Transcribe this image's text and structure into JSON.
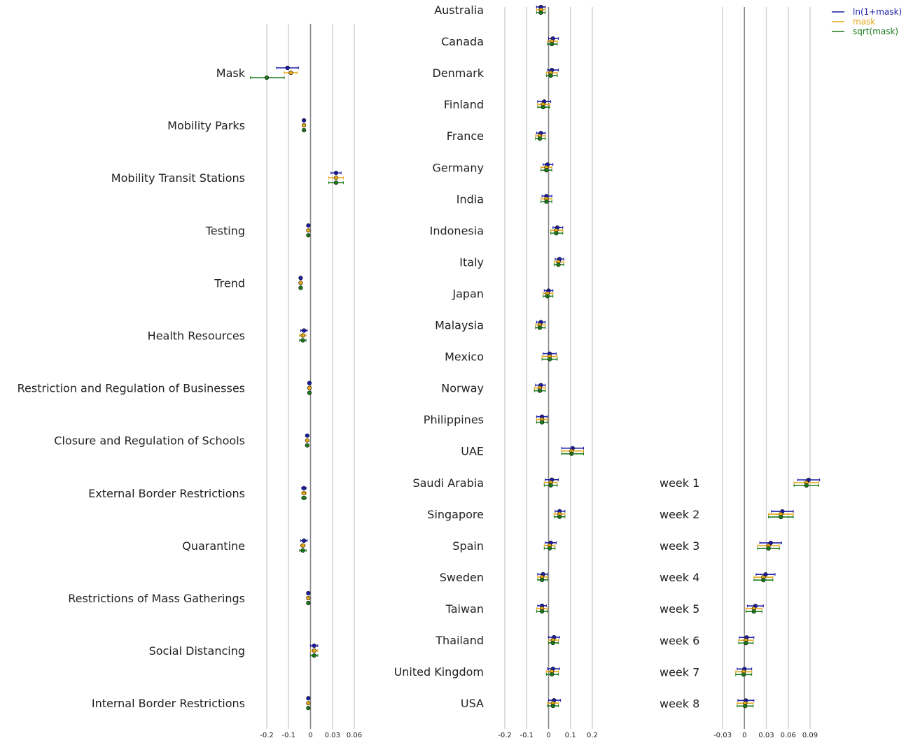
{
  "colors": {
    "series_1": "#1c1ca8",
    "series_2": "#e6a817",
    "series_3": "#1a7a1a",
    "grid": "#d0d0d0",
    "zero_line": "#888888",
    "text": "#222222"
  },
  "legend": {
    "placement": "top-right",
    "entries": [
      "ln(1+mask)",
      "mask",
      "sqrt(mask)"
    ]
  },
  "chart_data": [
    {
      "type": "scatter",
      "orientation": "horizontal-forest",
      "grid": true,
      "xlim": [
        -0.2,
        0.06
      ],
      "xticks": [
        "-0.2",
        "-0.1",
        "0",
        "0.03",
        "0.06"
      ],
      "xtick_values": [
        -0.2,
        -0.1,
        0,
        0.03,
        0.06
      ],
      "categories": [
        "Mask",
        "Mobility Parks",
        "Mobility Transit Stations",
        "Testing",
        "Trend",
        "Health Resources",
        "Restriction and Regulation of Businesses",
        "Closure and Regulation of Schools",
        "External Border Restrictions",
        "Quarantine",
        "Restrictions of Mass Gatherings",
        "Social Distancing",
        "Internal Border Restrictions"
      ],
      "series": [
        {
          "name": "ln(1+mask)",
          "values": [
            -0.105,
            -0.03,
            0.035,
            -0.01,
            -0.045,
            -0.03,
            -0.005,
            -0.015,
            -0.03,
            -0.03,
            -0.01,
            0.005,
            -0.01
          ],
          "lower": [
            -0.155,
            -0.034,
            0.028,
            -0.013,
            -0.05,
            -0.045,
            -0.008,
            -0.02,
            -0.04,
            -0.045,
            -0.015,
            0.0,
            -0.015
          ],
          "upper": [
            -0.055,
            -0.026,
            0.042,
            -0.007,
            -0.04,
            -0.015,
            -0.002,
            -0.01,
            -0.02,
            -0.015,
            -0.005,
            0.01,
            -0.005
          ]
        },
        {
          "name": "mask",
          "values": [
            -0.09,
            -0.03,
            0.035,
            -0.01,
            -0.045,
            -0.035,
            -0.005,
            -0.015,
            -0.03,
            -0.035,
            -0.01,
            0.005,
            -0.01
          ],
          "lower": [
            -0.12,
            -0.034,
            0.025,
            -0.013,
            -0.05,
            -0.05,
            -0.008,
            -0.02,
            -0.04,
            -0.045,
            -0.015,
            0.0,
            -0.015
          ],
          "upper": [
            -0.06,
            -0.026,
            0.045,
            -0.007,
            -0.04,
            -0.02,
            -0.002,
            -0.01,
            -0.02,
            -0.025,
            -0.005,
            0.01,
            -0.005
          ]
        },
        {
          "name": "sqrt(mask)",
          "values": [
            -0.2,
            -0.03,
            0.035,
            -0.01,
            -0.045,
            -0.035,
            -0.005,
            -0.015,
            -0.03,
            -0.035,
            -0.01,
            0.005,
            -0.01
          ],
          "lower": [
            -0.275,
            -0.034,
            0.025,
            -0.013,
            -0.05,
            -0.05,
            -0.008,
            -0.02,
            -0.04,
            -0.05,
            -0.015,
            0.0,
            -0.015
          ],
          "upper": [
            -0.12,
            -0.026,
            0.045,
            -0.007,
            -0.04,
            -0.02,
            -0.002,
            -0.01,
            -0.02,
            -0.02,
            -0.005,
            0.01,
            -0.005
          ]
        }
      ]
    },
    {
      "type": "scatter",
      "orientation": "horizontal-forest",
      "grid": true,
      "xlim": [
        -0.2,
        0.2
      ],
      "xticks": [
        "-0.2",
        "-0.1",
        "0",
        "0.1",
        "0.2"
      ],
      "xtick_values": [
        -0.2,
        -0.1,
        0,
        0.1,
        0.2
      ],
      "categories": [
        "Australia",
        "Canada",
        "Denmark",
        "Finland",
        "France",
        "Germany",
        "India",
        "Indonesia",
        "Italy",
        "Japan",
        "Malaysia",
        "Mexico",
        "Norway",
        "Philippines",
        "UAE",
        "Saudi Arabia",
        "Singapore",
        "Spain",
        "Sweden",
        "Taiwan",
        "Thailand",
        "United Kingdom",
        "USA"
      ],
      "series": [
        {
          "name": "ln(1+mask)",
          "values": [
            -0.035,
            0.02,
            0.015,
            -0.02,
            -0.035,
            -0.005,
            -0.01,
            0.04,
            0.05,
            0.0,
            -0.035,
            0.005,
            -0.035,
            -0.03,
            0.11,
            0.015,
            0.05,
            0.01,
            -0.025,
            -0.03,
            0.025,
            0.02,
            0.025
          ],
          "lower": [
            -0.055,
            0.0,
            -0.005,
            -0.05,
            -0.055,
            -0.025,
            -0.03,
            0.02,
            0.03,
            -0.02,
            -0.055,
            -0.025,
            -0.06,
            -0.055,
            0.06,
            -0.015,
            0.03,
            -0.015,
            -0.05,
            -0.05,
            0.0,
            -0.005,
            0.0
          ],
          "upper": [
            -0.015,
            0.045,
            0.045,
            0.01,
            -0.015,
            0.02,
            0.015,
            0.065,
            0.07,
            0.02,
            -0.015,
            0.035,
            -0.015,
            -0.005,
            0.16,
            0.045,
            0.075,
            0.035,
            -0.005,
            -0.01,
            0.05,
            0.05,
            0.055
          ]
        },
        {
          "name": "mask",
          "values": [
            -0.035,
            0.015,
            0.01,
            -0.025,
            -0.04,
            -0.01,
            -0.01,
            0.035,
            0.045,
            -0.005,
            -0.04,
            0.005,
            -0.04,
            -0.03,
            0.105,
            0.01,
            0.05,
            0.005,
            -0.03,
            -0.03,
            0.02,
            0.015,
            0.02
          ],
          "lower": [
            -0.055,
            -0.005,
            -0.01,
            -0.05,
            -0.06,
            -0.035,
            -0.035,
            0.01,
            0.025,
            -0.025,
            -0.06,
            -0.03,
            -0.065,
            -0.055,
            0.06,
            -0.02,
            0.025,
            -0.02,
            -0.05,
            -0.055,
            0.0,
            -0.01,
            -0.005
          ],
          "upper": [
            -0.015,
            0.04,
            0.04,
            0.005,
            -0.015,
            0.015,
            0.015,
            0.065,
            0.07,
            0.02,
            -0.015,
            0.04,
            -0.015,
            -0.005,
            0.16,
            0.04,
            0.075,
            0.03,
            -0.005,
            -0.005,
            0.045,
            0.045,
            0.045
          ]
        },
        {
          "name": "sqrt(mask)",
          "values": [
            -0.035,
            0.015,
            0.01,
            -0.025,
            -0.04,
            -0.01,
            -0.01,
            0.035,
            0.045,
            -0.005,
            -0.04,
            0.005,
            -0.04,
            -0.03,
            0.105,
            0.01,
            0.05,
            0.005,
            -0.03,
            -0.03,
            0.02,
            0.015,
            0.02
          ],
          "lower": [
            -0.055,
            -0.005,
            -0.01,
            -0.05,
            -0.06,
            -0.035,
            -0.035,
            0.01,
            0.025,
            -0.025,
            -0.06,
            -0.03,
            -0.065,
            -0.055,
            0.06,
            -0.02,
            0.025,
            -0.02,
            -0.05,
            -0.055,
            0.0,
            -0.01,
            -0.005
          ],
          "upper": [
            -0.015,
            0.04,
            0.04,
            0.005,
            -0.015,
            0.015,
            0.015,
            0.065,
            0.07,
            0.02,
            -0.015,
            0.04,
            -0.015,
            -0.005,
            0.16,
            0.04,
            0.075,
            0.03,
            -0.005,
            -0.005,
            0.045,
            0.045,
            0.045
          ]
        }
      ]
    },
    {
      "type": "scatter",
      "orientation": "horizontal-forest",
      "grid": true,
      "xlim": [
        -0.03,
        0.09
      ],
      "xticks": [
        "-0.03",
        "0",
        "0.03",
        "0.06",
        "0.09"
      ],
      "xtick_values": [
        -0.03,
        0,
        0.03,
        0.06,
        0.09
      ],
      "categories": [
        "week 1",
        "week 2",
        "week 3",
        "week 4",
        "week 5",
        "week 6",
        "week 7",
        "week 8"
      ],
      "series": [
        {
          "name": "ln(1+mask)",
          "values": [
            0.088,
            0.052,
            0.036,
            0.029,
            0.015,
            0.003,
            0.0,
            0.002
          ],
          "lower": [
            0.073,
            0.037,
            0.021,
            0.016,
            0.004,
            -0.007,
            -0.01,
            -0.009
          ],
          "upper": [
            0.103,
            0.067,
            0.051,
            0.042,
            0.026,
            0.013,
            0.01,
            0.013
          ]
        },
        {
          "name": "mask",
          "values": [
            0.085,
            0.05,
            0.033,
            0.026,
            0.013,
            0.002,
            -0.001,
            0.001
          ],
          "lower": [
            0.068,
            0.033,
            0.018,
            0.013,
            0.002,
            -0.008,
            -0.012,
            -0.01
          ],
          "upper": [
            0.102,
            0.067,
            0.048,
            0.039,
            0.024,
            0.012,
            0.01,
            0.012
          ]
        },
        {
          "name": "sqrt(mask)",
          "values": [
            0.085,
            0.05,
            0.033,
            0.026,
            0.013,
            0.002,
            -0.001,
            0.001
          ],
          "lower": [
            0.068,
            0.033,
            0.018,
            0.013,
            0.002,
            -0.008,
            -0.012,
            -0.01
          ],
          "upper": [
            0.102,
            0.067,
            0.048,
            0.039,
            0.024,
            0.012,
            0.01,
            0.012
          ]
        }
      ]
    }
  ]
}
